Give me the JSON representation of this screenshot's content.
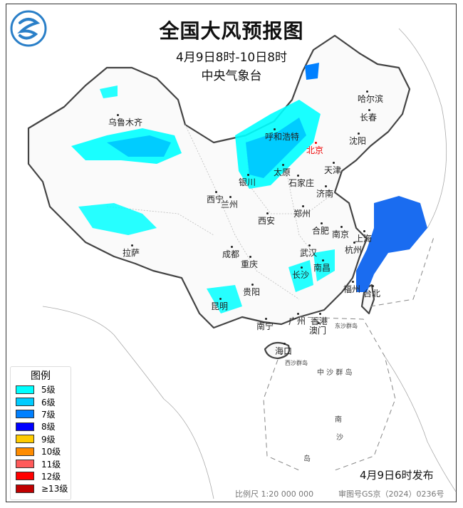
{
  "title": "全国大风预报图",
  "period": "4月9日8时-10日8时",
  "issuer": "中央气象台",
  "issue_time": "4月9日6时发布",
  "scale": "比例尺 1:20 000 000",
  "review_number": "审图号GS京（2024）0236号",
  "legend": {
    "title": "图例",
    "items": [
      {
        "label": "5级",
        "color": "#00ffff"
      },
      {
        "label": "6级",
        "color": "#00ccff"
      },
      {
        "label": "7级",
        "color": "#0080ff"
      },
      {
        "label": "8级",
        "color": "#0000ff"
      },
      {
        "label": "9级",
        "color": "#ffcc00"
      },
      {
        "label": "10级",
        "color": "#ff8c00"
      },
      {
        "label": "11级",
        "color": "#ff5a5a"
      },
      {
        "label": "12级",
        "color": "#ff0000"
      },
      {
        "label": "≥13级",
        "color": "#c00000"
      }
    ]
  },
  "cities": [
    {
      "name": "哈尔滨"
    },
    {
      "name": "长春"
    },
    {
      "name": "沈阳"
    },
    {
      "name": "乌鲁木齐"
    },
    {
      "name": "呼和浩特"
    },
    {
      "name": "北京",
      "capital": true
    },
    {
      "name": "天津"
    },
    {
      "name": "太原"
    },
    {
      "name": "石家庄"
    },
    {
      "name": "银川"
    },
    {
      "name": "济南"
    },
    {
      "name": "西宁"
    },
    {
      "name": "兰州"
    },
    {
      "name": "郑州"
    },
    {
      "name": "西安"
    },
    {
      "name": "合肥"
    },
    {
      "name": "南京"
    },
    {
      "name": "上海"
    },
    {
      "name": "拉萨"
    },
    {
      "name": "成都"
    },
    {
      "name": "重庆"
    },
    {
      "name": "武汉"
    },
    {
      "name": "杭州"
    },
    {
      "name": "南昌"
    },
    {
      "name": "长沙"
    },
    {
      "name": "贵阳"
    },
    {
      "name": "福州"
    },
    {
      "name": "台北"
    },
    {
      "name": "昆明"
    },
    {
      "name": "广州"
    },
    {
      "name": "香港"
    },
    {
      "name": "澳门"
    },
    {
      "name": "南宁"
    },
    {
      "name": "海口"
    },
    {
      "name": "东沙群岛"
    },
    {
      "name": "西沙群岛"
    },
    {
      "name": "中 沙 群 岛"
    },
    {
      "name": "南"
    },
    {
      "name": "沙"
    },
    {
      "name": "岛"
    }
  ]
}
